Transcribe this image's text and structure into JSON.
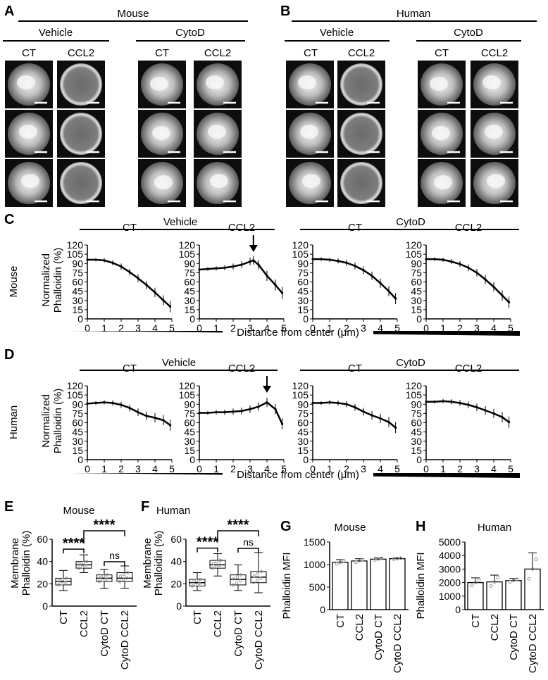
{
  "panels": {
    "A": {
      "letter": "A",
      "species": "Mouse",
      "groups": [
        "Vehicle",
        "CytoD"
      ],
      "conditions": [
        "CT",
        "CCL2",
        "CT",
        "CCL2"
      ],
      "ring_pattern": [
        false,
        true,
        false,
        false
      ]
    },
    "B": {
      "letter": "B",
      "species": "Human",
      "groups": [
        "Vehicle",
        "CytoD"
      ],
      "conditions": [
        "CT",
        "CCL2",
        "CT",
        "CCL2"
      ],
      "ring_pattern": [
        false,
        true,
        false,
        false
      ]
    },
    "C": {
      "letter": "C",
      "row_label": "Mouse",
      "groups": [
        "Vehicle",
        "CytoD"
      ],
      "subplot_titles": [
        "CT",
        "CCL2",
        "CT",
        "CCL2"
      ],
      "ylabel_line1": "Normalized",
      "ylabel_line2": "Phalloidin (%)",
      "xlabel": "Distance from center (μm)"
    },
    "D": {
      "letter": "D",
      "row_label": "Human",
      "groups": [
        "Vehicle",
        "CytoD"
      ],
      "subplot_titles": [
        "CT",
        "CCL2",
        "CT",
        "CCL2"
      ],
      "ylabel_line1": "Normalized",
      "ylabel_line2": "Phalloidin (%)",
      "xlabel": "Distance from center (μm)"
    },
    "E": {
      "letter": "E",
      "title": "Mouse",
      "ylabel_line1": "Membrane",
      "ylabel_line2": "Phalloidin (%)",
      "sig1": "****",
      "sig2": "****",
      "sig3": "ns"
    },
    "F": {
      "letter": "F",
      "title": "Human",
      "ylabel_line1": "Membrane",
      "ylabel_line2": "Phalloidin (%)",
      "sig1": "****",
      "sig2": "****",
      "sig3": "ns"
    },
    "G": {
      "letter": "G",
      "title": "Mouse",
      "ylabel": "Phalloidin MFI"
    },
    "H": {
      "letter": "H",
      "title": "Human",
      "ylabel": "Phalloidin MFI"
    }
  },
  "chart_data": [
    {
      "id": "C-mouse-vehicle-CT",
      "type": "line",
      "x": [
        0,
        0.5,
        1,
        1.5,
        2,
        2.5,
        3,
        3.5,
        4,
        4.5,
        4.9
      ],
      "y": [
        96,
        96,
        95,
        91,
        85,
        76,
        66,
        55,
        43,
        30,
        20
      ],
      "xlim": [
        0,
        5
      ],
      "ylim": [
        0,
        120
      ],
      "yticks": [
        0,
        15,
        30,
        45,
        60,
        75,
        90,
        105,
        120
      ]
    },
    {
      "id": "C-mouse-vehicle-CCL2",
      "type": "line",
      "x": [
        0,
        0.5,
        1,
        1.5,
        2,
        2.5,
        3,
        3.2,
        3.5,
        4,
        4.5,
        4.9
      ],
      "y": [
        80,
        81,
        82,
        83,
        85,
        88,
        93,
        95,
        88,
        70,
        55,
        42
      ],
      "xlim": [
        0,
        5
      ],
      "ylim": [
        0,
        120
      ],
      "peak_arrow_x": 3.2,
      "yticks": [
        0,
        15,
        30,
        45,
        60,
        75,
        90,
        105,
        120
      ]
    },
    {
      "id": "C-mouse-cytoD-CT",
      "type": "line",
      "x": [
        0,
        0.5,
        1,
        1.5,
        2,
        2.5,
        3,
        3.5,
        4,
        4.5,
        4.9
      ],
      "y": [
        97,
        97,
        96,
        94,
        91,
        86,
        79,
        70,
        58,
        45,
        33
      ],
      "xlim": [
        0,
        5
      ],
      "ylim": [
        0,
        120
      ],
      "yticks": [
        0,
        15,
        30,
        45,
        60,
        75,
        90,
        105,
        120
      ]
    },
    {
      "id": "C-mouse-cytoD-CCL2",
      "type": "line",
      "x": [
        0,
        0.5,
        1,
        1.5,
        2,
        2.5,
        3,
        3.5,
        4,
        4.5,
        4.9
      ],
      "y": [
        97,
        97,
        96,
        93,
        89,
        83,
        75,
        64,
        52,
        38,
        27
      ],
      "xlim": [
        0,
        5
      ],
      "ylim": [
        0,
        120
      ],
      "yticks": [
        0,
        15,
        30,
        45,
        60,
        75,
        90,
        105,
        120
      ]
    },
    {
      "id": "D-human-vehicle-CT",
      "type": "line",
      "x": [
        0,
        0.5,
        1,
        1.5,
        2,
        2.5,
        3,
        3.5,
        4,
        4.5,
        4.9
      ],
      "y": [
        91,
        92,
        93,
        92,
        89,
        84,
        77,
        71,
        68,
        64,
        56
      ],
      "xlim": [
        0,
        5
      ],
      "ylim": [
        0,
        120
      ],
      "yticks": [
        0,
        15,
        30,
        45,
        60,
        75,
        90,
        105,
        120
      ]
    },
    {
      "id": "D-human-vehicle-CCL2",
      "type": "line",
      "x": [
        0,
        0.5,
        1,
        1.5,
        2,
        2.5,
        3,
        3.5,
        4,
        4.5,
        4.9
      ],
      "y": [
        76,
        76,
        77,
        77,
        78,
        79,
        82,
        86,
        93,
        82,
        58
      ],
      "xlim": [
        0,
        5
      ],
      "ylim": [
        0,
        120
      ],
      "peak_arrow_x": 4.0,
      "yticks": [
        0,
        15,
        30,
        45,
        60,
        75,
        90,
        105,
        120
      ]
    },
    {
      "id": "D-human-cytoD-CT",
      "type": "line",
      "x": [
        0,
        0.5,
        1,
        1.5,
        2,
        2.5,
        3,
        3.5,
        4,
        4.5,
        4.9
      ],
      "y": [
        92,
        92,
        93,
        92,
        90,
        85,
        78,
        72,
        67,
        61,
        52
      ],
      "xlim": [
        0,
        5
      ],
      "ylim": [
        0,
        120
      ],
      "yticks": [
        0,
        15,
        30,
        45,
        60,
        75,
        90,
        105,
        120
      ]
    },
    {
      "id": "D-human-cytoD-CCL2",
      "type": "line",
      "x": [
        0,
        0.5,
        1,
        1.5,
        2,
        2.5,
        3,
        3.5,
        4,
        4.5,
        4.9
      ],
      "y": [
        94,
        94,
        95,
        94,
        92,
        89,
        85,
        80,
        75,
        69,
        61
      ],
      "xlim": [
        0,
        5
      ],
      "ylim": [
        0,
        120
      ],
      "yticks": [
        0,
        15,
        30,
        45,
        60,
        75,
        90,
        105,
        120
      ]
    },
    {
      "id": "E-mouse-membrane",
      "type": "box",
      "categories": [
        "CT",
        "CCL2",
        "CytoD CT",
        "CytoD CCL2"
      ],
      "ylim": [
        0,
        60
      ],
      "yticks": [
        0,
        20,
        40,
        60
      ],
      "boxes": [
        {
          "min": 14,
          "q1": 19,
          "median": 22,
          "q3": 25,
          "max": 32
        },
        {
          "min": 30,
          "q1": 34,
          "median": 37,
          "q3": 40,
          "max": 46
        },
        {
          "min": 16,
          "q1": 22,
          "median": 25,
          "q3": 28,
          "max": 33
        },
        {
          "min": 16,
          "q1": 22,
          "median": 25,
          "q3": 30,
          "max": 36
        }
      ]
    },
    {
      "id": "F-human-membrane",
      "type": "box",
      "categories": [
        "CT",
        "CCL2",
        "CytoD CT",
        "CytoD CCL2"
      ],
      "ylim": [
        0,
        60
      ],
      "yticks": [
        0,
        20,
        40,
        60
      ],
      "boxes": [
        {
          "min": 14,
          "q1": 18,
          "median": 21,
          "q3": 24,
          "max": 30
        },
        {
          "min": 27,
          "q1": 34,
          "median": 37,
          "q3": 41,
          "max": 47
        },
        {
          "min": 14,
          "q1": 19,
          "median": 24,
          "q3": 28,
          "max": 37
        },
        {
          "min": 12,
          "q1": 21,
          "median": 26,
          "q3": 31,
          "max": 48
        }
      ]
    },
    {
      "id": "G-mouse-MFI",
      "type": "bar",
      "categories": [
        "CT",
        "CCL2",
        "CytoD CT",
        "CytoD CCL2"
      ],
      "values": [
        1050,
        1080,
        1120,
        1130
      ],
      "errors": [
        60,
        50,
        30,
        20
      ],
      "ylim": [
        0,
        1500
      ],
      "yticks": [
        0,
        500,
        1000,
        1500
      ]
    },
    {
      "id": "H-human-MFI",
      "type": "bar",
      "categories": [
        "CT",
        "CCL2",
        "CytoD CT",
        "CytoD CCL2"
      ],
      "values": [
        2000,
        2050,
        2150,
        3000
      ],
      "errors": [
        350,
        500,
        150,
        1200
      ],
      "ylim": [
        0,
        5000
      ],
      "yticks": [
        0,
        1000,
        2000,
        3000,
        4000,
        5000
      ]
    }
  ]
}
